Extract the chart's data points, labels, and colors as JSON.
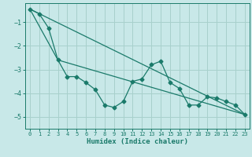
{
  "xlabel": "Humidex (Indice chaleur)",
  "background_color": "#c8e8e8",
  "grid_color": "#a8d0cc",
  "line_color": "#1a7a6a",
  "xlim": [
    -0.5,
    23.5
  ],
  "ylim": [
    -5.5,
    -0.2
  ],
  "yticks": [
    -5,
    -4,
    -3,
    -2,
    -1
  ],
  "xticks": [
    0,
    1,
    2,
    3,
    4,
    5,
    6,
    7,
    8,
    9,
    10,
    11,
    12,
    13,
    14,
    15,
    16,
    17,
    18,
    19,
    20,
    21,
    22,
    23
  ],
  "series1_x": [
    0,
    1,
    2,
    3,
    4,
    5,
    6,
    7,
    8,
    9,
    10,
    11,
    12,
    13,
    14,
    15,
    16,
    17,
    18,
    19,
    20,
    21,
    22,
    23
  ],
  "series1_y": [
    -0.45,
    -0.65,
    -1.25,
    -2.6,
    -3.3,
    -3.3,
    -3.55,
    -3.85,
    -4.5,
    -4.6,
    -4.35,
    -3.5,
    -3.4,
    -2.8,
    -2.65,
    -3.55,
    -3.8,
    -4.5,
    -4.5,
    -4.15,
    -4.2,
    -4.35,
    -4.5,
    -4.9
  ],
  "series2_x": [
    0,
    23
  ],
  "series2_y": [
    -0.45,
    -4.9
  ],
  "series3_x": [
    0,
    3,
    23
  ],
  "series3_y": [
    -0.45,
    -2.6,
    -4.9
  ]
}
